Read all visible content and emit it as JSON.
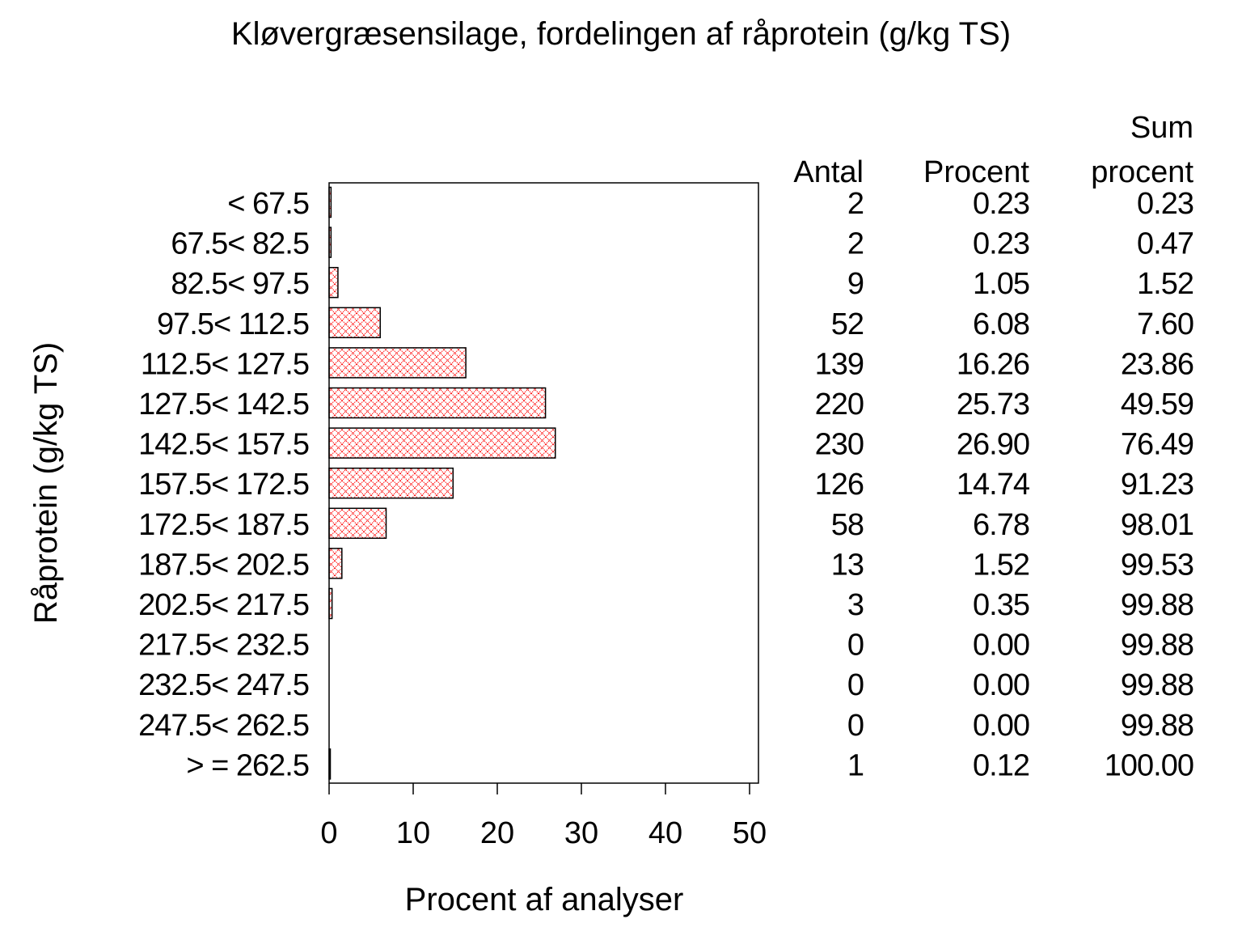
{
  "chart_data": {
    "type": "bar",
    "orientation": "horizontal",
    "title": "Kløvergræsensilage, fordelingen af råprotein (g/kg TS)",
    "xlabel": "Procent af analyser",
    "ylabel": "Råprotein (g/kg TS)",
    "xlim": [
      0,
      51
    ],
    "xticks": [
      0,
      10,
      20,
      30,
      40,
      50
    ],
    "grid": false,
    "bar_color": "#ff0000",
    "bar_fill": "crosshatch",
    "categories": [
      "< 67.5",
      "67.5< 82.5",
      "82.5< 97.5",
      "97.5< 112.5",
      "112.5< 127.5",
      "127.5< 142.5",
      "142.5< 157.5",
      "157.5< 172.5",
      "172.5< 187.5",
      "187.5< 202.5",
      "202.5< 217.5",
      "217.5< 232.5",
      "232.5< 247.5",
      "247.5< 262.5",
      "> = 262.5"
    ],
    "values": [
      0.23,
      0.23,
      1.05,
      6.08,
      16.26,
      25.73,
      26.9,
      14.74,
      6.78,
      1.52,
      0.35,
      0.0,
      0.0,
      0.0,
      0.12
    ],
    "table": {
      "headers": {
        "antal": [
          "",
          "Antal"
        ],
        "procent": [
          "",
          "Procent"
        ],
        "sum": [
          "Sum",
          "procent"
        ]
      },
      "antal": [
        "2",
        "2",
        "9",
        "52",
        "139",
        "220",
        "230",
        "126",
        "58",
        "13",
        "3",
        "0",
        "0",
        "0",
        "1"
      ],
      "procent": [
        "0.23",
        "0.23",
        "1.05",
        "6.08",
        "16.26",
        "25.73",
        "26.90",
        "14.74",
        "6.78",
        "1.52",
        "0.35",
        "0.00",
        "0.00",
        "0.00",
        "0.12"
      ],
      "sum": [
        "0.23",
        "0.47",
        "1.52",
        "7.60",
        "23.86",
        "49.59",
        "76.49",
        "91.23",
        "98.01",
        "99.53",
        "99.88",
        "99.88",
        "99.88",
        "99.88",
        "100.00"
      ]
    }
  }
}
